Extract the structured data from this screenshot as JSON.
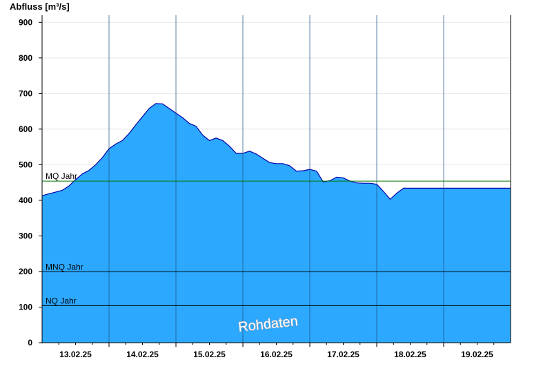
{
  "chart_data": {
    "type": "area",
    "ylabel": "Abfluss [m³/s]",
    "ylim": [
      0,
      920
    ],
    "yticks": [
      0,
      100,
      200,
      300,
      400,
      500,
      600,
      700,
      800,
      900
    ],
    "x_range_days": [
      0,
      7
    ],
    "day_ticks": [
      0.5,
      1.5,
      2.5,
      3.5,
      4.5,
      5.5,
      6.5
    ],
    "xticklabels": [
      "13.02.25",
      "14.02.25",
      "15.02.25",
      "16.02.25",
      "17.02.25",
      "18.02.25",
      "19.02.25"
    ],
    "day_boundaries": [
      1,
      2,
      3,
      4,
      5,
      6
    ],
    "grid": true,
    "fill_color": "#2ca8ff",
    "line_color": "#0000aa",
    "series": [
      {
        "x": [
          0.0,
          0.1,
          0.2,
          0.3,
          0.4,
          0.5,
          0.6,
          0.7,
          0.8,
          0.9,
          1.0,
          1.1,
          1.2,
          1.3,
          1.4,
          1.5,
          1.6,
          1.7,
          1.8,
          1.9,
          2.0,
          2.1,
          2.2,
          2.3,
          2.4,
          2.5,
          2.6,
          2.7,
          2.8,
          2.9,
          3.0,
          3.1,
          3.2,
          3.3,
          3.4,
          3.5,
          3.6,
          3.7,
          3.8,
          3.9,
          4.0,
          4.1,
          4.2,
          4.3,
          4.4,
          4.5,
          4.6,
          4.7,
          4.8,
          4.9,
          5.0,
          5.1,
          5.2,
          5.3,
          5.4,
          5.5,
          5.6,
          5.7,
          5.8,
          5.9,
          6.0,
          6.1,
          6.2,
          6.3,
          6.4,
          6.5,
          6.6,
          6.7,
          6.8,
          6.9,
          7.0
        ],
        "values": [
          413,
          418,
          423,
          428,
          440,
          458,
          474,
          484,
          500,
          520,
          545,
          558,
          568,
          588,
          612,
          635,
          658,
          672,
          671,
          658,
          645,
          632,
          616,
          608,
          583,
          568,
          575,
          568,
          552,
          532,
          532,
          538,
          530,
          518,
          506,
          503,
          503,
          497,
          482,
          483,
          487,
          482,
          452,
          455,
          465,
          463,
          454,
          449,
          448,
          448,
          445,
          425,
          403,
          420,
          434,
          434,
          434,
          434,
          434,
          434,
          434,
          434,
          434,
          434,
          434,
          434,
          434,
          434,
          434,
          434,
          434
        ]
      }
    ],
    "reference_lines": [
      {
        "label": "MQ Jahr",
        "value": 454,
        "color": "#007700"
      },
      {
        "label": "MNQ Jahr",
        "value": 199,
        "color": "#000000"
      },
      {
        "label": "NQ Jahr",
        "value": 104,
        "color": "#000000"
      }
    ],
    "watermark": "Rohdaten"
  }
}
